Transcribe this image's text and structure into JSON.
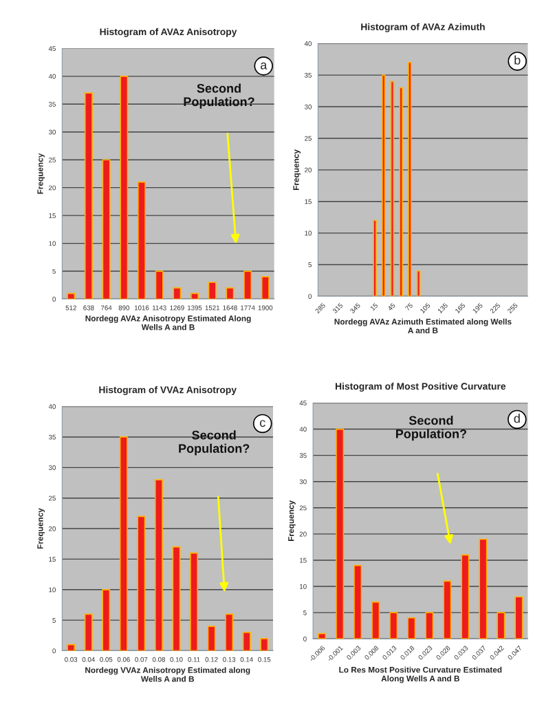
{
  "chart_data": [
    {
      "type": "bar",
      "title": "Histogram of AVAz Anisotropy",
      "xlabel": "Nordegg AVAz Anisotropy Estimated Along\nWells A and B",
      "ylabel": "Frequency",
      "categories": [
        "512",
        "638",
        "764",
        "890",
        "1016",
        "1143",
        "1269",
        "1395",
        "1521",
        "1648",
        "1774",
        "1900"
      ],
      "series": [
        {
          "color": "#ee1c1c",
          "values": [
            1,
            37,
            25,
            40,
            21,
            5,
            2,
            1,
            3,
            2,
            5,
            4
          ]
        }
      ],
      "ylim": [
        0,
        45
      ],
      "yticks": [
        0,
        5,
        10,
        15,
        20,
        25,
        30,
        35,
        40,
        45
      ],
      "grid": "y",
      "annotations": [
        "a",
        "Second\nPopulation?"
      ]
    },
    {
      "type": "bar",
      "title": "Histogram of AVAz Azimuth",
      "xlabel": "Nordegg AVAz Azimuth Estimated along Wells\nA and B",
      "ylabel": "Frequency",
      "categories": [
        "285",
        null,
        "315",
        null,
        "345",
        null,
        "15",
        null,
        "45",
        null,
        "75",
        null,
        "105",
        null,
        "135",
        null,
        "165",
        null,
        "195",
        null,
        "225",
        null,
        "255",
        null
      ],
      "series": [
        {
          "color": "#ee1c1c",
          "values": [
            null,
            null,
            null,
            null,
            null,
            null,
            12,
            35,
            34,
            33,
            37,
            4,
            null,
            null,
            null,
            null,
            null,
            null,
            null,
            null,
            null,
            null,
            null,
            null
          ]
        }
      ],
      "ylim": [
        0,
        40
      ],
      "yticks": [
        0,
        5,
        10,
        15,
        20,
        25,
        30,
        35,
        40
      ],
      "grid": "y",
      "annotations": [
        "b"
      ]
    },
    {
      "type": "bar",
      "title": "Histogram of VVAz Anisotropy",
      "xlabel": "Nordegg VVAz Anisotropy Estimated along\nWells A and B",
      "ylabel": "Frequency",
      "categories": [
        "0.03",
        "0.04",
        "0.05",
        "0.06",
        "0.07",
        "0.08",
        "0.10",
        "0.11",
        "0.12",
        "0.13",
        "0.14",
        "0.15"
      ],
      "series": [
        {
          "color": "#ee1c1c",
          "values": [
            1,
            6,
            10,
            35,
            22,
            28,
            17,
            16,
            4,
            6,
            3,
            2
          ]
        }
      ],
      "ylim": [
        0,
        40
      ],
      "yticks": [
        0,
        5,
        10,
        15,
        20,
        25,
        30,
        35,
        40
      ],
      "grid": "y",
      "annotations": [
        "c",
        "Second\nPopulation?"
      ]
    },
    {
      "type": "bar",
      "title": "Histogram of Most Positive Curvature",
      "xlabel": "Lo Res Most Positive Curvature Estimated\nAlong Wells A and B",
      "ylabel": "Frequency",
      "categories": [
        "-0.006",
        "-0.001",
        "0.003",
        "0.008",
        "0.013",
        "0.018",
        "0.023",
        "0.028",
        "0.033",
        "0.037",
        "0.042",
        "0.047"
      ],
      "series": [
        {
          "color": "#ee1c1c",
          "values": [
            1,
            40,
            14,
            7,
            5,
            4,
            5,
            11,
            16,
            19,
            5,
            8
          ]
        }
      ],
      "ylim": [
        0,
        45
      ],
      "yticks": [
        0,
        5,
        10,
        15,
        20,
        25,
        30,
        35,
        40,
        45
      ],
      "grid": "y",
      "annotations": [
        "d",
        "Second\nPopulation?"
      ]
    }
  ]
}
